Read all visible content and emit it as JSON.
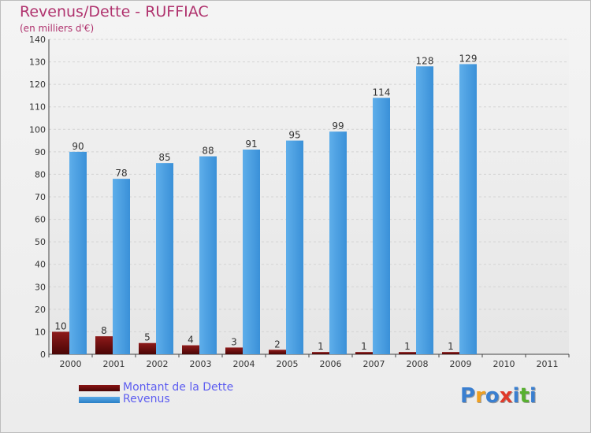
{
  "title": "Revenus/Dette - RUFFIAC",
  "subtitle": "(en milliers d'€)",
  "chart_data": {
    "type": "bar",
    "title": "Revenus/Dette - RUFFIAC",
    "ylabel": "(en milliers d'€)",
    "xlabel": "",
    "categories": [
      "2000",
      "2001",
      "2002",
      "2003",
      "2004",
      "2005",
      "2006",
      "2007",
      "2008",
      "2009",
      "2010",
      "2011"
    ],
    "series": [
      {
        "name": "Montant de la Dette",
        "color": "#7a0c0c",
        "values": [
          10,
          8,
          5,
          4,
          3,
          2,
          1,
          1,
          1,
          1,
          null,
          null
        ]
      },
      {
        "name": "Revenus",
        "color": "#3d95dc",
        "values": [
          90,
          78,
          85,
          88,
          91,
          95,
          99,
          114,
          128,
          129,
          null,
          null
        ]
      }
    ],
    "ylim": [
      0,
      140
    ],
    "yticks": [
      0,
      10,
      20,
      30,
      40,
      50,
      60,
      70,
      80,
      90,
      100,
      110,
      120,
      130,
      140
    ],
    "grid": true,
    "legend": "bottom-left"
  },
  "legend": {
    "items": [
      {
        "label": "Montant de la Dette",
        "color": "#6b0a0a"
      },
      {
        "label": "Revenus",
        "color": "#3d95dc"
      }
    ]
  },
  "logo": {
    "text": "Proxiti",
    "letters": [
      {
        "ch": "P",
        "color": "#3a7fd0"
      },
      {
        "ch": "r",
        "color": "#f0a020"
      },
      {
        "ch": "o",
        "color": "#3a7fd0"
      },
      {
        "ch": "x",
        "color": "#e03a2a"
      },
      {
        "ch": "i",
        "color": "#3a7fd0"
      },
      {
        "ch": "t",
        "color": "#58b030"
      },
      {
        "ch": "i",
        "color": "#3a7fd0"
      }
    ]
  }
}
